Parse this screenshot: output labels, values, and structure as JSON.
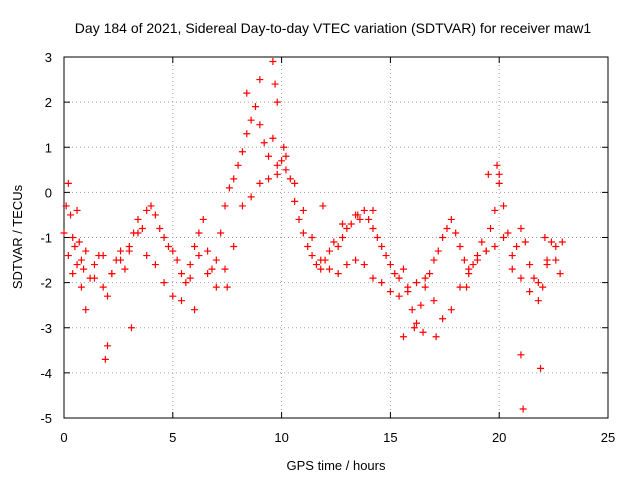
{
  "chart_data": {
    "type": "scatter",
    "title": "Day 184 of 2021, Sidereal Day-to-day VTEC variation (SDTVAR) for receiver maw1",
    "xlabel": "GPS time / hours",
    "ylabel": "SDTVAR / TECUs",
    "xlim": [
      0,
      25
    ],
    "ylim": [
      -5,
      3
    ],
    "xticks": [
      0,
      5,
      10,
      15,
      20,
      25
    ],
    "yticks": [
      -5,
      -4,
      -3,
      -2,
      -1,
      0,
      1,
      2,
      3
    ],
    "grid": true,
    "marker": "+",
    "color": "#ff0000",
    "series": [
      {
        "name": "SDTVAR",
        "x": [
          0.0,
          0.1,
          0.2,
          0.3,
          0.4,
          0.5,
          0.6,
          0.7,
          0.8,
          0.9,
          1.0,
          1.2,
          1.4,
          1.6,
          1.8,
          2.0,
          2.2,
          2.4,
          2.6,
          2.8,
          3.0,
          3.2,
          3.4,
          3.6,
          3.8,
          4.0,
          4.2,
          4.4,
          4.6,
          4.8,
          5.0,
          5.2,
          5.4,
          5.6,
          5.8,
          6.0,
          6.2,
          6.4,
          6.6,
          6.8,
          7.0,
          7.2,
          7.4,
          7.6,
          7.8,
          8.0,
          8.2,
          8.4,
          8.6,
          8.8,
          9.0,
          9.2,
          9.4,
          9.6,
          9.8,
          10.0,
          10.2,
          10.4,
          10.6,
          10.8,
          11.0,
          11.2,
          11.4,
          11.6,
          11.8,
          12.0,
          12.2,
          12.4,
          12.6,
          12.8,
          13.0,
          13.2,
          13.4,
          13.6,
          13.8,
          14.0,
          14.2,
          14.4,
          14.6,
          14.8,
          15.0,
          15.2,
          15.4,
          15.6,
          15.8,
          16.0,
          16.2,
          16.4,
          16.6,
          16.8,
          17.0,
          17.2,
          17.4,
          17.6,
          17.8,
          18.0,
          18.2,
          18.4,
          18.6,
          18.8,
          19.0,
          19.2,
          19.4,
          19.6,
          19.8,
          20.0,
          20.2,
          20.4,
          20.6,
          20.8,
          21.0,
          21.2,
          21.4,
          21.6,
          21.8,
          22.0,
          22.2,
          22.4,
          22.6,
          22.8,
          0.2,
          0.4,
          0.6,
          0.8,
          1.0,
          1.4,
          1.8,
          2.2,
          2.6,
          3.0,
          3.4,
          3.8,
          4.2,
          4.6,
          5.0,
          5.4,
          5.8,
          6.2,
          6.6,
          7.0,
          7.4,
          7.8,
          8.2,
          8.6,
          9.0,
          9.4,
          9.8,
          10.2,
          10.6,
          11.0,
          11.4,
          11.8,
          12.2,
          12.6,
          13.0,
          13.4,
          13.8,
          14.2,
          14.6,
          15.0,
          15.4,
          15.8,
          16.2,
          16.6,
          17.0,
          17.4,
          17.8,
          18.2,
          18.6,
          19.0,
          19.4,
          19.8,
          20.2,
          20.6,
          21.0,
          21.4,
          21.8,
          22.2,
          22.6,
          1.9,
          2.0,
          3.1,
          6.0,
          7.5,
          8.4,
          9.0,
          9.6,
          9.7,
          9.8,
          10.1,
          11.9,
          12.8,
          13.5,
          14.2,
          15.6,
          16.1,
          16.5,
          17.1,
          18.5,
          19.5,
          19.9,
          20.0,
          21.0,
          21.1,
          21.9,
          22.1,
          22.9
        ],
        "y": [
          -0.9,
          -0.3,
          0.2,
          -0.5,
          -1.8,
          -1.2,
          -0.4,
          -1.1,
          -1.5,
          -1.7,
          -1.3,
          -1.9,
          -1.6,
          -1.4,
          -2.1,
          -2.3,
          -1.8,
          -1.5,
          -1.3,
          -1.7,
          -1.2,
          -0.9,
          -0.6,
          -0.8,
          -0.4,
          -0.3,
          -0.5,
          -0.8,
          -1.0,
          -1.2,
          -1.3,
          -1.5,
          -1.8,
          -2.0,
          -1.6,
          -1.2,
          -0.9,
          -0.6,
          -1.3,
          -1.7,
          -1.5,
          -0.9,
          -0.3,
          0.1,
          0.3,
          0.6,
          0.9,
          1.3,
          1.6,
          1.9,
          1.5,
          1.1,
          0.8,
          1.2,
          0.6,
          0.7,
          0.5,
          0.3,
          -0.2,
          -0.6,
          -0.9,
          -1.2,
          -1.4,
          -1.6,
          -1.7,
          -1.5,
          -1.3,
          -1.1,
          -1.2,
          -1.0,
          -0.8,
          -0.7,
          -0.5,
          -0.6,
          -0.4,
          -0.6,
          -0.8,
          -1.0,
          -1.2,
          -1.4,
          -1.6,
          -1.8,
          -1.9,
          -1.7,
          -2.2,
          -2.6,
          -2.9,
          -2.5,
          -2.1,
          -1.8,
          -1.5,
          -1.3,
          -1.0,
          -0.8,
          -0.6,
          -0.9,
          -1.2,
          -1.5,
          -1.8,
          -1.6,
          -1.4,
          -1.1,
          -1.3,
          -0.8,
          -0.4,
          0.2,
          -0.3,
          -0.9,
          -1.4,
          -1.2,
          -0.8,
          -1.1,
          -1.6,
          -1.9,
          -2.4,
          -2.1,
          -1.6,
          -1.1,
          -1.5,
          -1.8,
          -1.4,
          -1.0,
          -1.6,
          -2.1,
          -2.6,
          -1.9,
          -1.4,
          -1.8,
          -1.5,
          -1.3,
          -0.9,
          -1.4,
          -1.6,
          -2.0,
          -2.3,
          -2.4,
          -1.9,
          -1.4,
          -1.8,
          -2.1,
          -1.7,
          -1.2,
          -0.3,
          -0.1,
          0.2,
          0.3,
          0.4,
          0.8,
          0.2,
          -0.4,
          -1.0,
          -1.5,
          -1.7,
          -1.8,
          -1.6,
          -1.5,
          -1.6,
          -1.9,
          -2.0,
          -2.2,
          -2.3,
          -2.1,
          -2.0,
          -1.9,
          -2.4,
          -2.8,
          -2.6,
          -2.1,
          -1.7,
          -1.5,
          -1.3,
          -1.2,
          -1.0,
          -1.7,
          -1.9,
          -2.2,
          -2.0,
          -1.5,
          -1.2,
          -3.7,
          -3.4,
          -3.0,
          -2.6,
          -2.1,
          2.2,
          2.5,
          2.9,
          2.4,
          2.0,
          1.0,
          -0.3,
          -0.7,
          -0.5,
          -0.4,
          -3.2,
          -3.0,
          -3.1,
          -3.2,
          -2.1,
          0.4,
          0.6,
          0.4,
          -3.6,
          -4.8,
          -3.9,
          -1.0,
          -1.1
        ]
      }
    ]
  }
}
